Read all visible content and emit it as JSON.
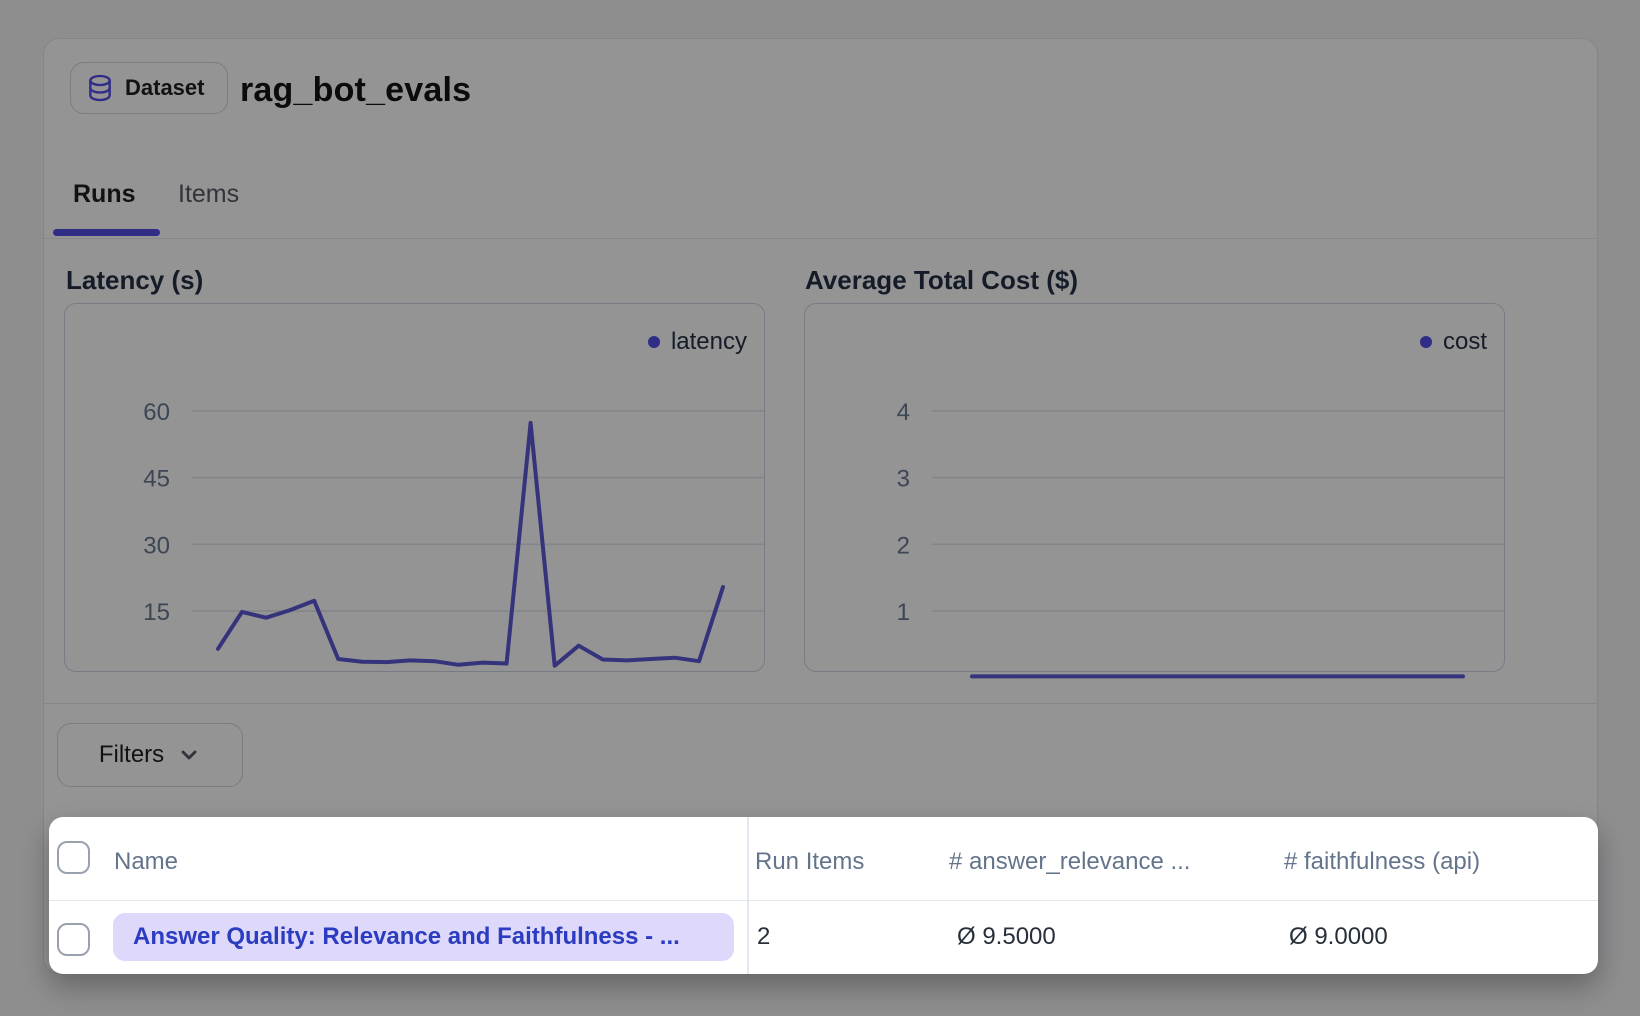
{
  "accent": "#4f46e5",
  "header": {
    "badge": "Dataset",
    "title": "rag_bot_evals"
  },
  "tabs": {
    "runs": "Runs",
    "items": "Items",
    "active_tab": "Runs"
  },
  "chart_data": [
    {
      "type": "line",
      "title": "Latency (s)",
      "ylabel": "",
      "xlabel": "",
      "yticks": [
        15,
        30,
        45,
        60
      ],
      "ylim": [
        0,
        65
      ],
      "grid": true,
      "legend_position": "top-right",
      "line_color": "#5552d1",
      "series": [
        {
          "name": "latency",
          "values": [
            6.5,
            14.8,
            13.5,
            15.2,
            17.3,
            4.2,
            3.6,
            3.5,
            3.9,
            3.7,
            2.9,
            3.4,
            3.2,
            57.3,
            2.7,
            7.2,
            4.1,
            3.9,
            4.2,
            4.5,
            3.7,
            20.4
          ]
        }
      ]
    },
    {
      "type": "line",
      "title": "Average Total Cost ($)",
      "ylabel": "",
      "xlabel": "",
      "yticks": [
        1,
        2,
        3,
        4
      ],
      "ylim": [
        0,
        4.3
      ],
      "grid": true,
      "legend_position": "top-right",
      "line_color": "#5552d1",
      "series": [
        {
          "name": "cost",
          "values": [
            0.02,
            0.02,
            0.02,
            0.02,
            0.02,
            0.02,
            0.02,
            0.02,
            0.02,
            0.02,
            0.02,
            0.02
          ]
        }
      ]
    }
  ],
  "filters": {
    "label": "Filters"
  },
  "table": {
    "columns": [
      "Name",
      "Run Items",
      "# answer_relevance ...",
      "# faithfulness (api)"
    ],
    "rows": [
      {
        "name": "Answer Quality: Relevance and Faithfulness - ...",
        "run_items": "2",
        "answer_relevance": "Ø 9.5000",
        "faithfulness": "Ø 9.0000"
      }
    ]
  }
}
